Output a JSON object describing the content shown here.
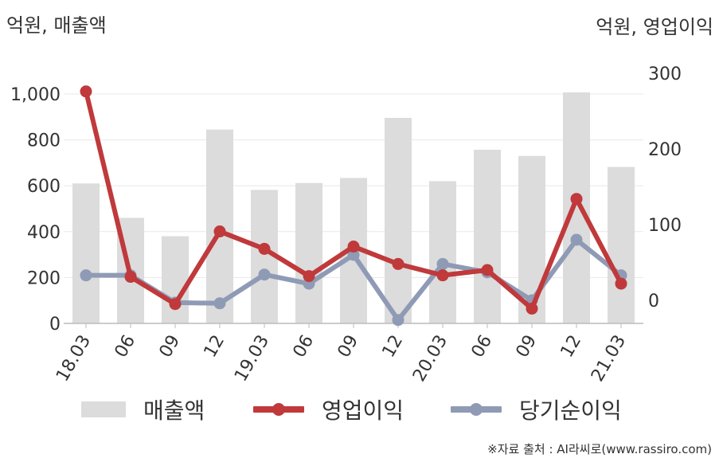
{
  "units": {
    "left": "억원, 매출액",
    "right": "억원, 영업이익"
  },
  "legend": {
    "revenue": "매출액",
    "op": "영업이익",
    "net": "당기순이익"
  },
  "source": "※자료 출처 : AI라씨로(www.rassiro.com)",
  "colors": {
    "revenue": "#dcdcdc",
    "op": "#c0393b",
    "net": "#8f9ab5",
    "grid": "#e8e8e8",
    "axis": "#bbbbbb",
    "text": "#333333"
  },
  "chart_data": {
    "type": "bar",
    "categories": [
      "18.03",
      "06",
      "09",
      "12",
      "19.03",
      "06",
      "09",
      "12",
      "20.03",
      "06",
      "09",
      "12",
      "21.03"
    ],
    "series": [
      {
        "name": "매출액",
        "type": "bar",
        "axis": "left",
        "values": [
          610,
          460,
          380,
          845,
          582,
          612,
          634,
          896,
          620,
          757,
          730,
          1007,
          682
        ]
      },
      {
        "name": "영업이익",
        "type": "line",
        "axis": "right",
        "values": [
          276,
          31,
          -5,
          91,
          68,
          32,
          71,
          48,
          33,
          40,
          -11,
          134,
          22
        ]
      },
      {
        "name": "당기순이익",
        "type": "line",
        "axis": "right",
        "values": [
          33,
          33,
          -3,
          -4,
          34,
          22,
          60,
          -26,
          48,
          37,
          0,
          80,
          33
        ]
      }
    ],
    "left_axis": {
      "ylim": [
        0,
        1000
      ],
      "ticks": [
        "0",
        "200",
        "400",
        "600",
        "800",
        "1,000"
      ]
    },
    "right_axis": {
      "ylim": [
        0,
        300
      ],
      "ticks": [
        "0",
        "100",
        "200",
        "300"
      ]
    },
    "grid": true,
    "legend_position": "bottom"
  }
}
